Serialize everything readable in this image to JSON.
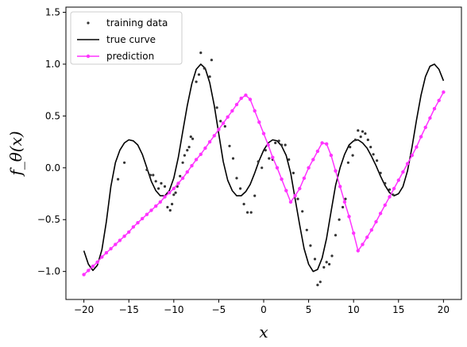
{
  "chart_data": {
    "type": "line",
    "xlabel": "x",
    "ylabel": "f_θ(x)",
    "xlim": [
      -22,
      22
    ],
    "ylim": [
      -1.27,
      1.55
    ],
    "xticks": [
      -20,
      -15,
      -10,
      -5,
      0,
      5,
      10,
      15,
      20
    ],
    "xtick_labels": [
      "−20",
      "−15",
      "−10",
      "−5",
      "0",
      "5",
      "10",
      "15",
      "20"
    ],
    "yticks": [
      -1.0,
      -0.5,
      0.0,
      0.5,
      1.0,
      1.5
    ],
    "ytick_labels": [
      "−1.0",
      "−0.5",
      "0.0",
      "0.5",
      "1.0",
      "1.5"
    ],
    "legend_position": "top-left",
    "series": [
      {
        "name": "training data",
        "kind": "scatter",
        "color": "#333333",
        "points": [
          [
            -15.5,
            0.05
          ],
          [
            -16.2,
            -0.11
          ],
          [
            -13.0,
            -0.02
          ],
          [
            -12.6,
            -0.07
          ],
          [
            -12.3,
            -0.07
          ],
          [
            -12.0,
            -0.13
          ],
          [
            -11.7,
            -0.2
          ],
          [
            -11.4,
            -0.15
          ],
          [
            -11.0,
            -0.18
          ],
          [
            -10.7,
            -0.38
          ],
          [
            -10.4,
            -0.41
          ],
          [
            -10.2,
            -0.35
          ],
          [
            -10.0,
            -0.26
          ],
          [
            -9.8,
            -0.24
          ],
          [
            -9.6,
            -0.18
          ],
          [
            -9.3,
            -0.08
          ],
          [
            -9.0,
            0.05
          ],
          [
            -8.8,
            0.12
          ],
          [
            -8.5,
            0.17
          ],
          [
            -8.3,
            0.2
          ],
          [
            -8.1,
            0.3
          ],
          [
            -7.9,
            0.28
          ],
          [
            -7.5,
            0.83
          ],
          [
            -7.2,
            0.9
          ],
          [
            -7.0,
            1.11
          ],
          [
            -6.6,
            0.96
          ],
          [
            -6.0,
            0.88
          ],
          [
            -5.8,
            1.04
          ],
          [
            -5.2,
            0.58
          ],
          [
            -4.8,
            0.45
          ],
          [
            -4.3,
            0.4
          ],
          [
            -3.8,
            0.21
          ],
          [
            -3.4,
            0.09
          ],
          [
            -3.0,
            -0.1
          ],
          [
            -2.6,
            -0.2
          ],
          [
            -2.2,
            -0.35
          ],
          [
            -1.8,
            -0.43
          ],
          [
            -1.4,
            -0.43
          ],
          [
            -1.0,
            -0.27
          ],
          [
            -0.6,
            0.06
          ],
          [
            -0.2,
            0.0
          ],
          [
            0.2,
            0.17
          ],
          [
            0.6,
            0.09
          ],
          [
            1.0,
            0.08
          ],
          [
            1.3,
            0.24
          ],
          [
            1.7,
            0.26
          ],
          [
            2.0,
            0.22
          ],
          [
            2.4,
            0.22
          ],
          [
            2.8,
            0.08
          ],
          [
            3.3,
            -0.05
          ],
          [
            3.8,
            -0.3
          ],
          [
            4.3,
            -0.42
          ],
          [
            4.8,
            -0.6
          ],
          [
            5.2,
            -0.75
          ],
          [
            5.7,
            -0.88
          ],
          [
            6.0,
            -1.13
          ],
          [
            6.3,
            -1.1
          ],
          [
            6.7,
            -0.96
          ],
          [
            7.0,
            -0.91
          ],
          [
            7.3,
            -0.93
          ],
          [
            7.6,
            -0.85
          ],
          [
            8.0,
            -0.65
          ],
          [
            8.4,
            -0.5
          ],
          [
            8.8,
            -0.38
          ],
          [
            9.1,
            -0.3
          ],
          [
            9.4,
            0.05
          ],
          [
            9.6,
            0.2
          ],
          [
            9.9,
            0.12
          ],
          [
            10.2,
            0.27
          ],
          [
            10.5,
            0.36
          ],
          [
            10.8,
            0.3
          ],
          [
            11.0,
            0.35
          ],
          [
            11.3,
            0.33
          ],
          [
            11.6,
            0.27
          ],
          [
            11.9,
            0.2
          ],
          [
            12.2,
            0.13
          ],
          [
            12.6,
            0.07
          ],
          [
            13.0,
            -0.05
          ],
          [
            13.5,
            -0.15
          ],
          [
            14.0,
            -0.21
          ],
          [
            14.4,
            -0.26
          ]
        ]
      },
      {
        "name": "true curve",
        "kind": "line",
        "color": "#000000",
        "x": [
          -20.0,
          -19.5,
          -19.0,
          -18.5,
          -18.0,
          -17.5,
          -17.0,
          -16.5,
          -16.0,
          -15.5,
          -15.0,
          -14.5,
          -14.0,
          -13.5,
          -13.0,
          -12.5,
          -12.0,
          -11.5,
          -11.0,
          -10.5,
          -10.0,
          -9.5,
          -9.0,
          -8.5,
          -8.0,
          -7.5,
          -7.0,
          -6.5,
          -6.0,
          -5.5,
          -5.0,
          -4.5,
          -4.0,
          -3.5,
          -3.0,
          -2.5,
          -2.0,
          -1.5,
          -1.0,
          -0.5,
          0.0,
          0.5,
          1.0,
          1.5,
          2.0,
          2.5,
          3.0,
          3.5,
          4.0,
          4.5,
          5.0,
          5.5,
          6.0,
          6.5,
          7.0,
          7.5,
          8.0,
          8.5,
          9.0,
          9.5,
          10.0,
          10.5,
          11.0,
          11.5,
          12.0,
          12.5,
          13.0,
          13.5,
          14.0,
          14.5,
          15.0,
          15.5,
          16.0,
          16.5,
          17.0,
          17.5,
          18.0,
          18.5,
          19.0,
          19.5,
          20.0
        ],
        "y": [
          -0.8,
          -0.93,
          -0.99,
          -0.94,
          -0.79,
          -0.52,
          -0.18,
          0.05,
          0.17,
          0.24,
          0.27,
          0.26,
          0.22,
          0.13,
          0.0,
          -0.13,
          -0.22,
          -0.27,
          -0.27,
          -0.22,
          -0.1,
          0.1,
          0.35,
          0.6,
          0.81,
          0.95,
          1.0,
          0.96,
          0.82,
          0.6,
          0.33,
          0.06,
          -0.12,
          -0.22,
          -0.27,
          -0.27,
          -0.23,
          -0.16,
          -0.05,
          0.07,
          0.17,
          0.24,
          0.27,
          0.26,
          0.21,
          0.12,
          -0.05,
          -0.3,
          -0.55,
          -0.78,
          -0.93,
          -1.0,
          -0.98,
          -0.87,
          -0.68,
          -0.42,
          -0.17,
          0.0,
          0.13,
          0.22,
          0.26,
          0.27,
          0.24,
          0.19,
          0.11,
          0.02,
          -0.08,
          -0.17,
          -0.24,
          -0.27,
          -0.25,
          -0.18,
          -0.03,
          0.2,
          0.46,
          0.7,
          0.88,
          0.98,
          1.0,
          0.95,
          0.84
        ]
      },
      {
        "name": "prediction",
        "kind": "line-markers",
        "color": "#ff33ff",
        "x": [
          -20.0,
          -19.5,
          -19.0,
          -18.5,
          -18.0,
          -17.5,
          -17.0,
          -16.5,
          -16.0,
          -15.5,
          -15.0,
          -14.5,
          -14.0,
          -13.5,
          -13.0,
          -12.5,
          -12.0,
          -11.5,
          -11.0,
          -10.5,
          -10.0,
          -9.5,
          -9.0,
          -8.5,
          -8.0,
          -7.5,
          -7.0,
          -6.5,
          -6.0,
          -5.5,
          -5.0,
          -4.5,
          -4.0,
          -3.5,
          -3.0,
          -2.5,
          -2.0,
          -1.5,
          -1.0,
          -0.5,
          0.0,
          0.5,
          1.0,
          1.5,
          2.0,
          2.5,
          3.0,
          3.5,
          4.0,
          4.5,
          5.0,
          5.5,
          6.0,
          6.5,
          7.0,
          7.5,
          8.0,
          8.5,
          9.0,
          9.5,
          10.0,
          10.5,
          11.0,
          11.5,
          12.0,
          12.5,
          13.0,
          13.5,
          14.0,
          14.5,
          15.0,
          15.5,
          16.0,
          16.5,
          17.0,
          17.5,
          18.0,
          18.5,
          19.0,
          19.5,
          20.0
        ],
        "y": [
          -1.03,
          -0.99,
          -0.95,
          -0.91,
          -0.86,
          -0.82,
          -0.78,
          -0.74,
          -0.7,
          -0.66,
          -0.62,
          -0.57,
          -0.53,
          -0.49,
          -0.45,
          -0.41,
          -0.37,
          -0.33,
          -0.28,
          -0.24,
          -0.2,
          -0.15,
          -0.1,
          -0.04,
          0.02,
          0.08,
          0.13,
          0.19,
          0.25,
          0.31,
          0.37,
          0.43,
          0.49,
          0.55,
          0.61,
          0.67,
          0.7,
          0.66,
          0.55,
          0.44,
          0.33,
          0.22,
          0.1,
          0.0,
          -0.11,
          -0.22,
          -0.33,
          -0.27,
          -0.2,
          -0.1,
          0.0,
          0.08,
          0.16,
          0.24,
          0.23,
          0.12,
          -0.03,
          -0.18,
          -0.33,
          -0.47,
          -0.63,
          -0.8,
          -0.74,
          -0.67,
          -0.6,
          -0.52,
          -0.44,
          -0.36,
          -0.28,
          -0.2,
          -0.12,
          -0.04,
          0.04,
          0.12,
          0.2,
          0.3,
          0.39,
          0.48,
          0.57,
          0.65,
          0.73
        ]
      }
    ]
  }
}
